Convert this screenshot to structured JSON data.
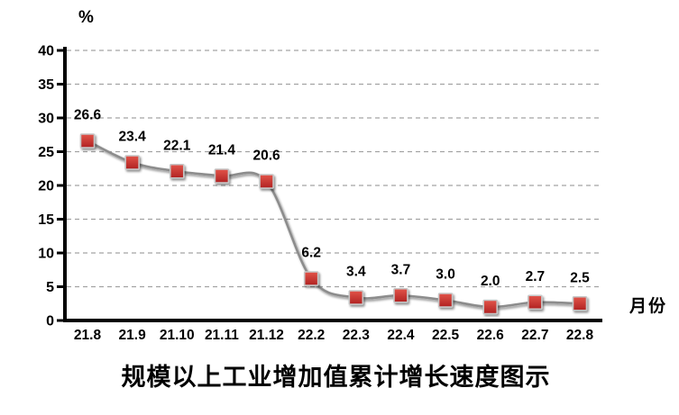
{
  "chart_data": {
    "type": "line",
    "title": "规模以上工业增加值累计增长速度图示",
    "ylabel": "%",
    "xlabel": "月份",
    "categories": [
      "21.8",
      "21.9",
      "21.10",
      "21.11",
      "21.12",
      "22.2",
      "22.3",
      "22.4",
      "22.5",
      "22.6",
      "22.7",
      "22.8"
    ],
    "values": [
      26.6,
      23.4,
      22.1,
      21.4,
      20.6,
      6.2,
      3.4,
      3.7,
      3.0,
      2.0,
      2.7,
      2.5
    ],
    "ylim": [
      0,
      40
    ],
    "ytick_step": 5,
    "grid": "horizontal-dashed",
    "legend": "none",
    "smoothed_line": true,
    "colors": {
      "marker_fill_top": "#e25449",
      "marker_fill_bottom": "#b02222",
      "marker_border": "#c6c6c6",
      "line": "#8c8c8c",
      "grid": "#a3a3a3",
      "axis": "#000000",
      "text": "#000000",
      "background": "#ffffff"
    }
  }
}
